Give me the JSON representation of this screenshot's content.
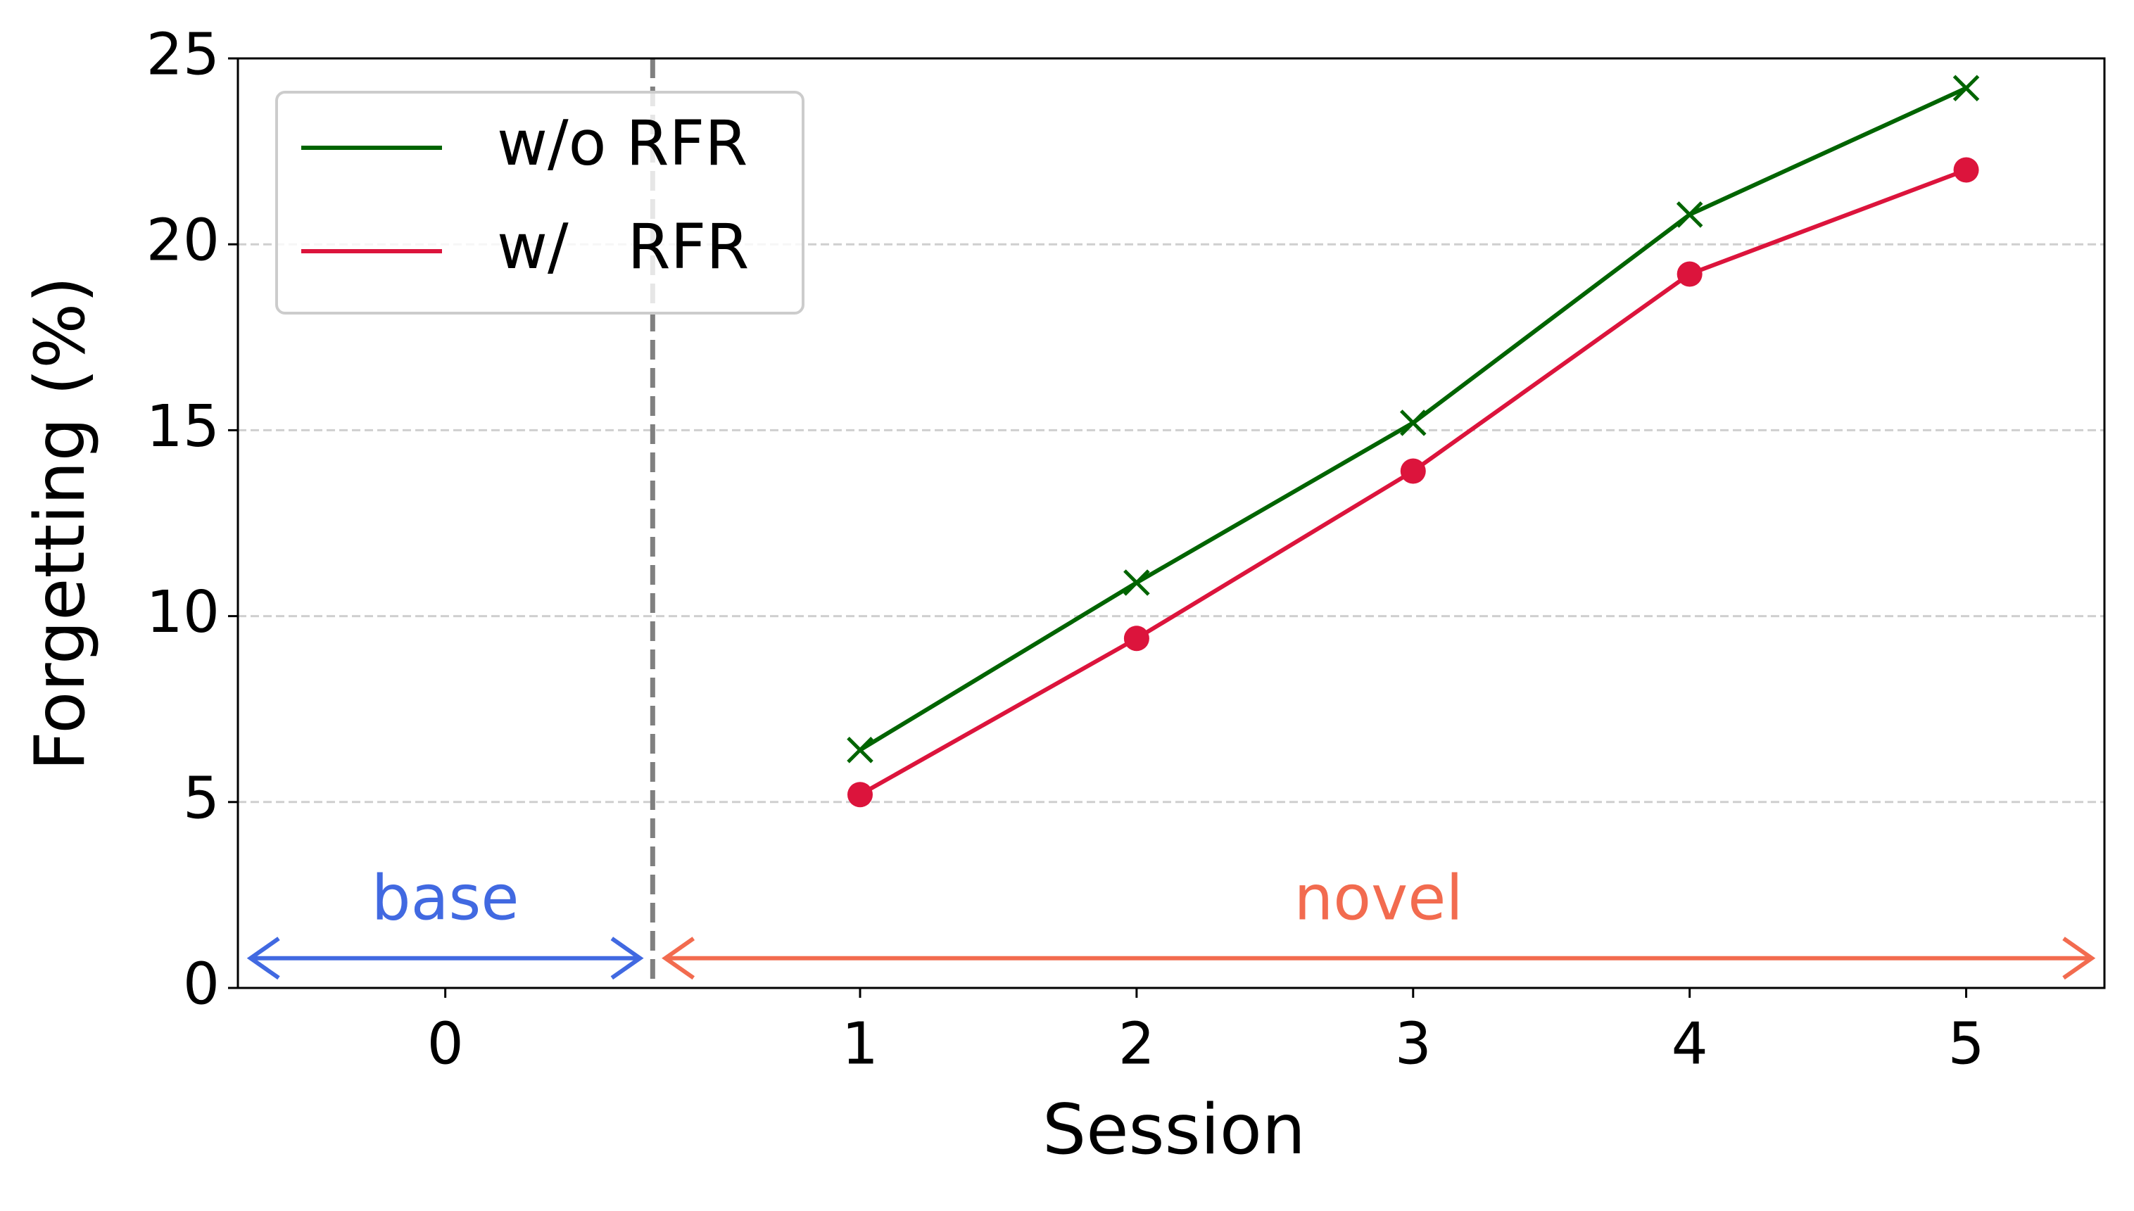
{
  "chart_data": {
    "type": "line",
    "x_label": "Session",
    "y_label": "Forgetting (%)",
    "x": [
      1,
      2,
      3,
      4,
      5
    ],
    "series": [
      {
        "name": "w/o RFR",
        "color": "#006400",
        "marker": "x",
        "values": [
          6.4,
          10.9,
          15.2,
          20.8,
          24.2
        ]
      },
      {
        "name": "w/   RFR",
        "color": "#dc143c",
        "marker": "o",
        "values": [
          5.2,
          9.4,
          13.9,
          19.2,
          22.0
        ]
      }
    ],
    "xlim": [
      -1.25,
      5.5
    ],
    "xticks": [
      {
        "value": -0.5,
        "label": "0"
      },
      1,
      2,
      3,
      4,
      5
    ],
    "ylim": [
      0,
      25
    ],
    "yticks": [
      0,
      5,
      10,
      15,
      20,
      25
    ],
    "grid": true,
    "legend": "upper left",
    "divider": 0.25,
    "annotations": [
      {
        "text": "base",
        "color": "#4169e1"
      },
      {
        "text": "novel",
        "color": "#f26b4f"
      }
    ]
  }
}
